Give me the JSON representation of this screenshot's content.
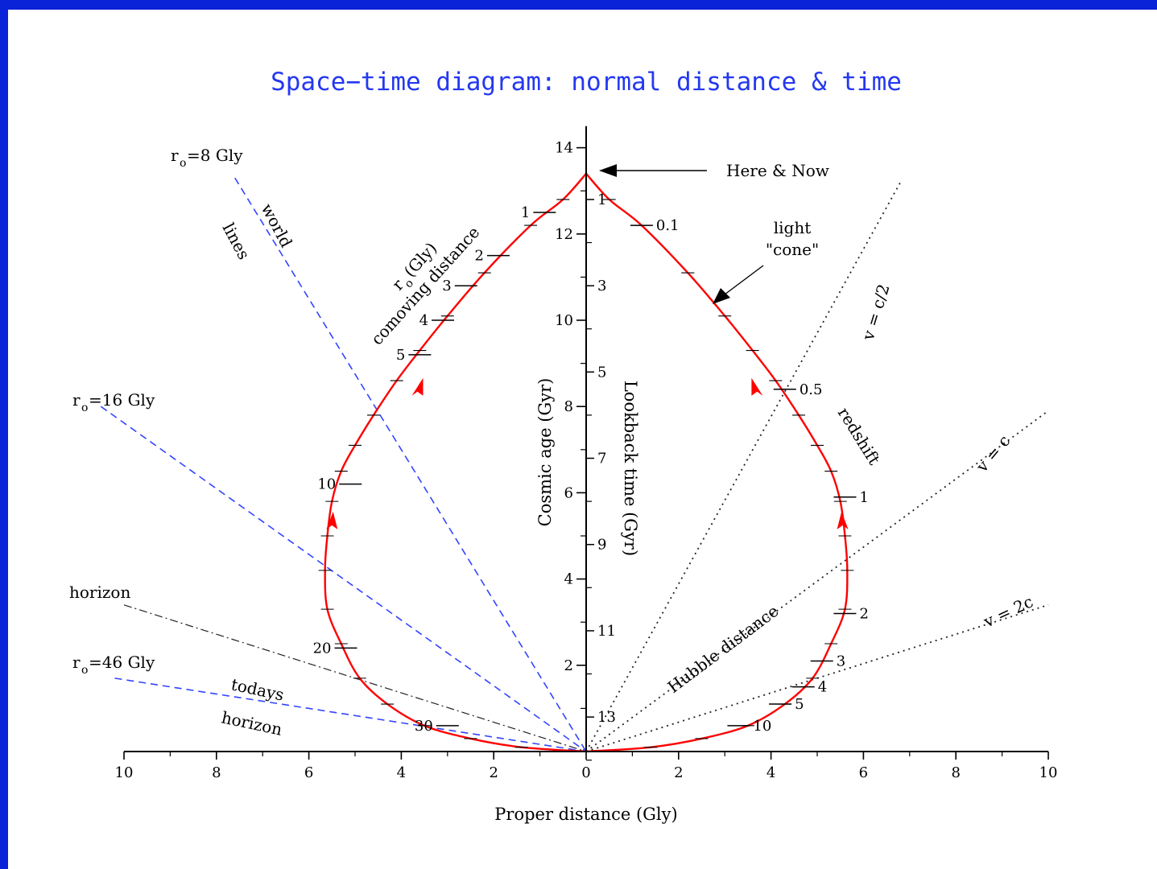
{
  "chart_data": {
    "type": "line",
    "title": "Space−time diagram: normal distance & time",
    "xlabel": "Proper distance (Gly)",
    "ylabel_left": "Cosmic age (Gyr)",
    "ylabel_right": "Lookback time (Gyr)",
    "xlim": [
      -10,
      10
    ],
    "ylim": [
      0,
      14.5
    ],
    "x_tick_values": [
      -10,
      -8,
      -6,
      -4,
      -2,
      0,
      2,
      4,
      6,
      8,
      10
    ],
    "x_tick_labels": [
      "10",
      "8",
      "6",
      "4",
      "2",
      "0",
      "2",
      "4",
      "6",
      "8",
      "10"
    ],
    "y_ticks": [
      2,
      4,
      6,
      8,
      10,
      12,
      14
    ],
    "lookback_ticks": [
      {
        "label": "1",
        "age": 12.8
      },
      {
        "label": "3",
        "age": 10.8
      },
      {
        "label": "5",
        "age": 8.8
      },
      {
        "label": "7",
        "age": 6.8
      },
      {
        "label": "9",
        "age": 4.8
      },
      {
        "label": "11",
        "age": 2.8
      },
      {
        "label": "13",
        "age": 0.8
      }
    ],
    "here_now": {
      "x": 0,
      "age": 13.4,
      "label": "Here & Now"
    },
    "light_cone": {
      "label": "light \"cone\"",
      "points": [
        [
          0,
          13.4
        ],
        [
          0.5,
          12.8
        ],
        [
          1.2,
          12.2
        ],
        [
          2.2,
          11.1
        ],
        [
          3.0,
          10.1
        ],
        [
          3.6,
          9.3
        ],
        [
          4.1,
          8.6
        ],
        [
          4.6,
          7.8
        ],
        [
          5.0,
          7.1
        ],
        [
          5.3,
          6.5
        ],
        [
          5.5,
          5.8
        ],
        [
          5.6,
          5.0
        ],
        [
          5.65,
          4.2
        ],
        [
          5.6,
          3.3
        ],
        [
          5.3,
          2.5
        ],
        [
          4.9,
          1.7
        ],
        [
          4.3,
          1.1
        ],
        [
          3.5,
          0.6
        ],
        [
          2.5,
          0.3
        ],
        [
          1.4,
          0.1
        ],
        [
          0,
          0
        ]
      ]
    },
    "comoving_ticks": [
      {
        "label": "1",
        "x": -0.9,
        "age": 12.5
      },
      {
        "label": "2",
        "x": -1.9,
        "age": 11.5
      },
      {
        "label": "3",
        "x": -2.6,
        "age": 10.8
      },
      {
        "label": "4",
        "x": -3.1,
        "age": 10.0
      },
      {
        "label": "5",
        "x": -3.6,
        "age": 9.2
      },
      {
        "label": "10",
        "x": -5.1,
        "age": 6.2
      },
      {
        "label": "20",
        "x": -5.2,
        "age": 2.4
      },
      {
        "label": "30",
        "x": -3.0,
        "age": 0.6
      }
    ],
    "redshift_ticks": [
      {
        "label": "0.1",
        "x": 1.2,
        "age": 12.2
      },
      {
        "label": "0.5",
        "x": 4.3,
        "age": 8.4
      },
      {
        "label": "1",
        "x": 5.6,
        "age": 5.9
      },
      {
        "label": "2",
        "x": 5.6,
        "age": 3.2
      },
      {
        "label": "3",
        "x": 5.1,
        "age": 2.1
      },
      {
        "label": "4",
        "x": 4.7,
        "age": 1.5
      },
      {
        "label": "5",
        "x": 4.2,
        "age": 1.1
      },
      {
        "label": "10",
        "x": 3.3,
        "age": 0.6
      }
    ],
    "world_lines": [
      {
        "label": "r_o=8 Gly",
        "from": [
          -7.6,
          13.3
        ],
        "to": [
          0,
          0
        ]
      },
      {
        "label": "r_o=16 Gly",
        "from": [
          -10.5,
          8.0
        ],
        "to": [
          0,
          0
        ]
      },
      {
        "label": "r_o=46 Gly",
        "from": [
          -10.2,
          1.7
        ],
        "to": [
          0,
          0
        ]
      }
    ],
    "horizon_line": {
      "label": "horizon",
      "from": [
        -10.0,
        3.4
      ],
      "to": [
        0,
        0
      ]
    },
    "hubble_lines": [
      {
        "label": "v = c/2",
        "from": [
          0,
          0
        ],
        "to": [
          6.8,
          13.2
        ]
      },
      {
        "label": "v = c",
        "from": [
          0,
          0
        ],
        "to": [
          10.0,
          7.9
        ]
      },
      {
        "label": "v = 2c",
        "from": [
          0,
          0
        ],
        "to": [
          10.0,
          3.4
        ]
      }
    ],
    "annotations": [
      {
        "text": "world lines"
      },
      {
        "text": "r_o (Gly) comoving distance"
      },
      {
        "text": "redshift"
      },
      {
        "text": "Hubble distance"
      },
      {
        "text": "todays horizon"
      }
    ],
    "colors": {
      "light_cone": "#ff0000",
      "world_lines": "#3344ff",
      "horizon": "#000000",
      "background_border": "#0a22d8",
      "title": "#2438f0"
    }
  }
}
